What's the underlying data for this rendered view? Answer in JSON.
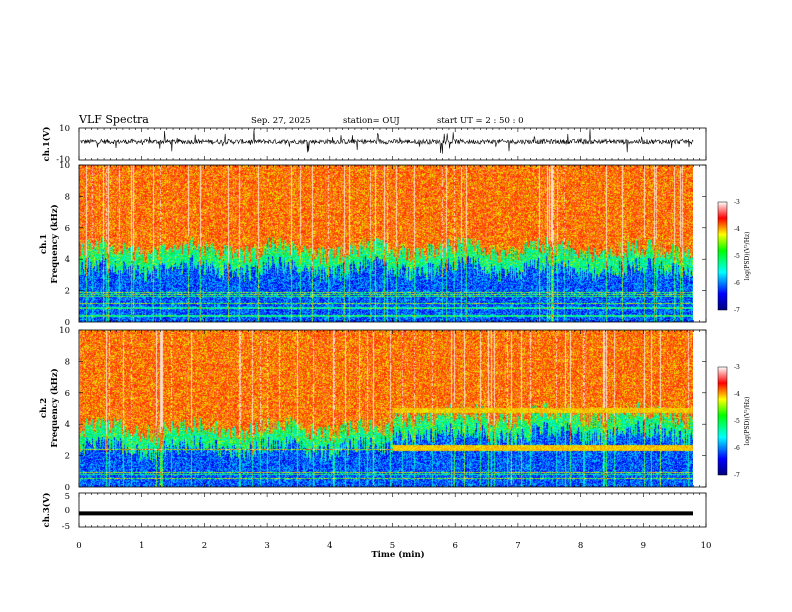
{
  "header": {
    "title": "VLF Spectra",
    "date": "Sep. 27, 2025",
    "station": "station= OUJ",
    "start": "start  UT =   2  : 50 : 0"
  },
  "chart_data": [
    {
      "type": "line",
      "panel": "ch.1 waveform",
      "ylabel": "ch.1(V)",
      "ylim": [
        -10,
        10
      ],
      "yticks": [
        "10",
        "-10"
      ],
      "xlim": [
        0,
        10
      ],
      "baseline_v": 1.5,
      "trace_color": "#000000"
    },
    {
      "type": "heatmap",
      "panel": "ch.1 spectrogram",
      "ylabel": "ch.1\nFrequency (kHz)",
      "ylim": [
        0,
        10
      ],
      "yticks": [
        "0",
        "2",
        "4",
        "6",
        "8",
        "10"
      ],
      "xlim": [
        0,
        9.8
      ],
      "boundary_khz_start": 4.6,
      "boundary_khz_end": 4.6,
      "colorbar": {
        "label": "log(PSD)(V²/Hz)",
        "range": [
          -7,
          -3
        ],
        "ticks": [
          "-3",
          "-4",
          "-5",
          "-6",
          "-7"
        ]
      }
    },
    {
      "type": "heatmap",
      "panel": "ch.2 spectrogram",
      "ylabel": "ch.2\nFrequency (kHz)",
      "ylim": [
        0,
        10
      ],
      "yticks": [
        "0",
        "2",
        "4",
        "6",
        "8",
        "10"
      ],
      "xlim": [
        0,
        9.8
      ],
      "boundary_khz_start": 3.7,
      "boundary_khz_end": 4.6,
      "emission_lines_khz_after_5min": [
        2.5,
        4.9
      ],
      "colorbar": {
        "label": "log(PSD)(V²/Hz)",
        "range": [
          -7,
          -3
        ],
        "ticks": [
          "-3",
          "-4",
          "-5",
          "-6",
          "-7"
        ]
      }
    },
    {
      "type": "line",
      "panel": "ch.3 waveform",
      "ylabel": "ch.3(V)",
      "ylim": [
        -5,
        5
      ],
      "yticks": [
        "5",
        "0",
        "-5"
      ],
      "xlim": [
        0,
        10
      ],
      "constant_v": -1.0
    }
  ],
  "xaxis": {
    "label": "Time  (min)",
    "ticks": [
      "0",
      "1",
      "2",
      "3",
      "4",
      "5",
      "6",
      "7",
      "8",
      "9",
      "10"
    ]
  },
  "colors": {
    "spectro_hot": "#ff2a00",
    "spectro_mid": "#ffff00",
    "spectro_low": "#00e0ff",
    "spectro_bg": "#0010a0"
  }
}
